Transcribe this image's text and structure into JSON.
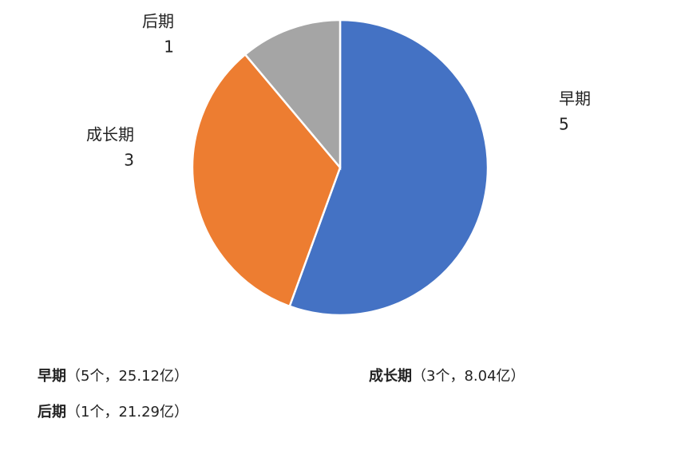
{
  "chart_data": {
    "type": "pie",
    "categories": [
      "早期",
      "成长期",
      "后期"
    ],
    "values": [
      5,
      3,
      1
    ],
    "colors": [
      "#4472c4",
      "#ed7d31",
      "#a5a5a5"
    ],
    "notes": [
      {
        "name": "早期",
        "detail": "（5个，25.12亿）"
      },
      {
        "name": "成长期",
        "detail": "（3个，8.04亿）"
      },
      {
        "name": "后期",
        "detail": "（1个，21.29亿）"
      }
    ]
  }
}
